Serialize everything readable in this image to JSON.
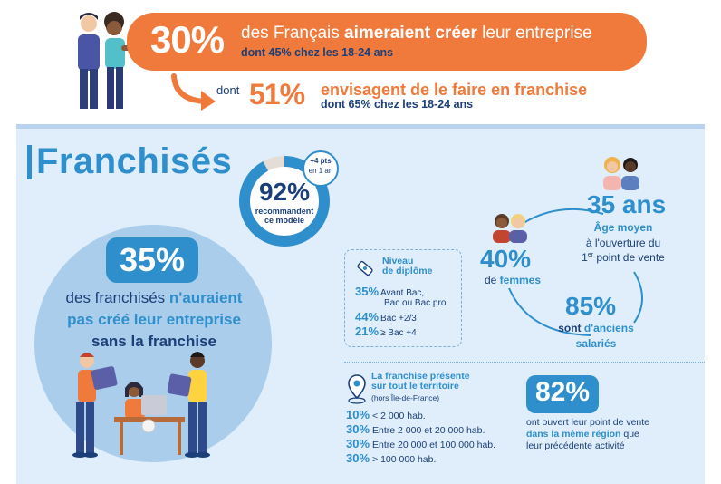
{
  "top": {
    "stat1_value": "30%",
    "stat1_text_pre": "des Français ",
    "stat1_text_bold": "aimeraient créer",
    "stat1_text_post": " leur entreprise",
    "stat1_sub": "dont 45% chez les 18-24 ans",
    "dont_label": "dont",
    "stat2_value": "51%",
    "stat2_text_pre": "envisagent de le ",
    "stat2_text_bold": "faire en franchise",
    "stat2_sub": "dont 65% chez les 18-24 ans"
  },
  "main": {
    "title": "Franchisés",
    "recommend": {
      "value": "92%",
      "fraction": 0.92,
      "label_line1": "recommandent",
      "label_line2": "ce modèle",
      "badge_line1": "+4 pts",
      "badge_line2": "en 1 an"
    },
    "highlight": {
      "value": "35%",
      "text_pre": "des franchisés ",
      "text_hl": "n'auraient",
      "text_line2": "pas créé leur entreprise",
      "text_line3": "sans la franchise"
    },
    "diploma": {
      "title_line1": "Niveau",
      "title_line2": "de diplôme",
      "rows": [
        {
          "pct": "35%",
          "label": "Avant Bac,",
          "label2": "Bac ou Bac pro"
        },
        {
          "pct": "44%",
          "label": "Bac +2/3"
        },
        {
          "pct": "21%",
          "label": "≥ Bac +4"
        }
      ]
    },
    "age": {
      "value": "35 ans",
      "line1": "Âge moyen",
      "line2": "à l'ouverture du",
      "line3_pre": "1",
      "line3_sup": "er",
      "line3_post": " point de vente"
    },
    "women": {
      "value": "40%",
      "pre": "de ",
      "bold": "femmes"
    },
    "employees": {
      "value": "85%",
      "pre": "sont ",
      "bold": "d'anciens",
      "line2": "salariés"
    },
    "territory": {
      "title_line1": "La franchise présente",
      "title_line2": "sur tout le territoire",
      "sub": "(hors Île-de-France)",
      "rows": [
        {
          "pct": "10%",
          "label": "< 2 000 hab."
        },
        {
          "pct": "30%",
          "label": "Entre 2 000 et 20 000 hab."
        },
        {
          "pct": "30%",
          "label": "Entre 20 000 et 100 000 hab."
        },
        {
          "pct": "30%",
          "label": "> 100 000 hab."
        }
      ]
    },
    "region": {
      "value": "82%",
      "line1": "ont ouvert leur point de vente",
      "line2_bold": "dans la même région",
      "line2_post": " que",
      "line3": "leur précédente activité"
    }
  },
  "colors": {
    "orange": "#ef7a3c",
    "blue": "#2e8fcc",
    "navy": "#1b3f78",
    "panel": "#dfeefa",
    "circle": "#a9cdea"
  }
}
